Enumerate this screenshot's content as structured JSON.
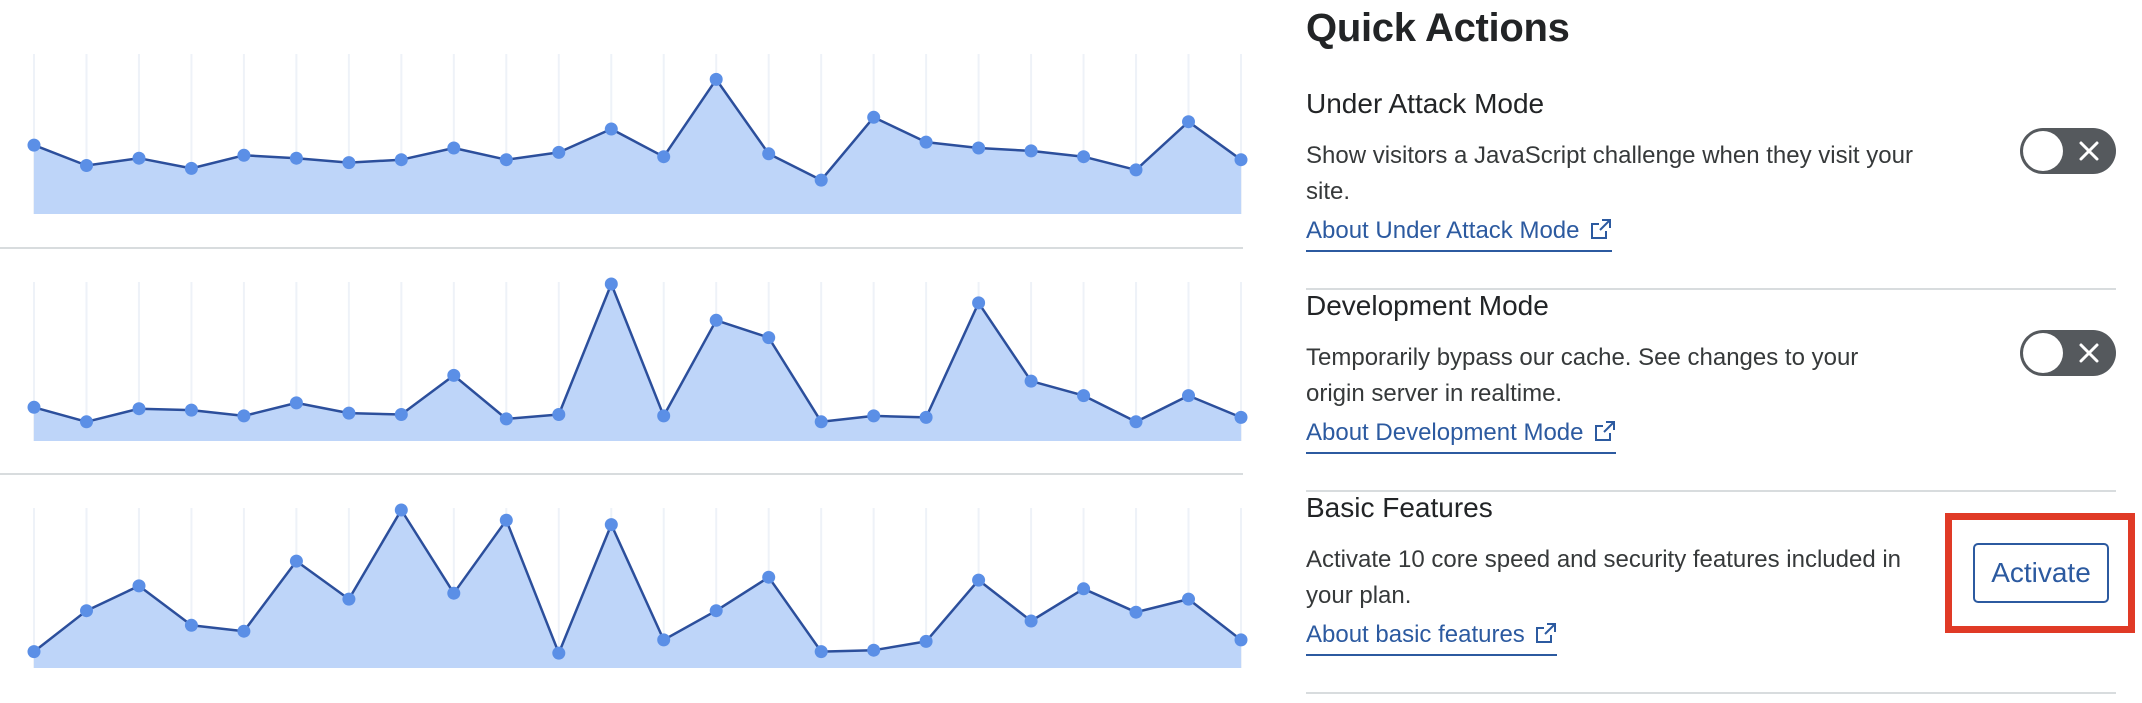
{
  "panel": {
    "title": "Quick Actions",
    "items": [
      {
        "title": "Under Attack Mode",
        "description": "Show visitors a JavaScript challenge when they visit your site.",
        "link": "About Under Attack Mode",
        "control": "toggle",
        "toggle_state": "off"
      },
      {
        "title": "Development Mode",
        "description": "Temporarily bypass our cache. See changes to your origin server in realtime.",
        "link": "About Development Mode",
        "control": "toggle",
        "toggle_state": "off"
      },
      {
        "title": "Basic Features",
        "description": "Activate 10 core speed and security features included in your plan.",
        "link": "About basic features",
        "control": "button",
        "button_label": "Activate"
      }
    ]
  },
  "colors": {
    "text": "#36393a",
    "heading": "#222426",
    "link": "#2c5aa0",
    "chart_line": "#2c4f9c",
    "chart_fill": "#bed5f9",
    "chart_point": "#5b8fe6",
    "toggle_off": "#55595d",
    "highlight": "#e03a26",
    "divider": "#d8dcde"
  },
  "icons": {
    "link_icon": "external-link-icon",
    "toggle_icon": "close-icon"
  },
  "chart_data": [
    {
      "type": "area",
      "x": [
        1,
        2,
        3,
        4,
        5,
        6,
        7,
        8,
        9,
        10,
        11,
        12,
        13,
        14,
        15,
        16,
        17,
        18,
        19,
        20,
        21,
        22,
        23,
        24
      ],
      "values": [
        39,
        25,
        30,
        23,
        32,
        30,
        27,
        29,
        37,
        29,
        34,
        50,
        31,
        84,
        33,
        15,
        58,
        41,
        37,
        35,
        31,
        22,
        55,
        29
      ],
      "ylim": [
        0,
        100
      ]
    },
    {
      "type": "area",
      "x": [
        1,
        2,
        3,
        4,
        5,
        6,
        7,
        8,
        9,
        10,
        11,
        12,
        13,
        14,
        15,
        16,
        17,
        18,
        19,
        20,
        21,
        22,
        23,
        24
      ],
      "values": [
        15,
        5,
        14,
        13,
        9,
        18,
        11,
        10,
        37,
        7,
        10,
        100,
        9,
        75,
        63,
        5,
        9,
        8,
        87,
        33,
        23,
        5,
        23,
        8
      ],
      "ylim": [
        0,
        100
      ]
    },
    {
      "type": "area",
      "x": [
        1,
        2,
        3,
        4,
        5,
        6,
        7,
        8,
        9,
        10,
        11,
        12,
        13,
        14,
        15,
        16,
        17,
        18,
        19,
        20,
        21,
        22,
        23,
        24
      ],
      "values": [
        3,
        31,
        48,
        21,
        17,
        65,
        39,
        100,
        43,
        93,
        2,
        90,
        11,
        31,
        54,
        3,
        4,
        10,
        52,
        24,
        46,
        30,
        39,
        11
      ],
      "ylim": [
        0,
        100
      ]
    }
  ]
}
